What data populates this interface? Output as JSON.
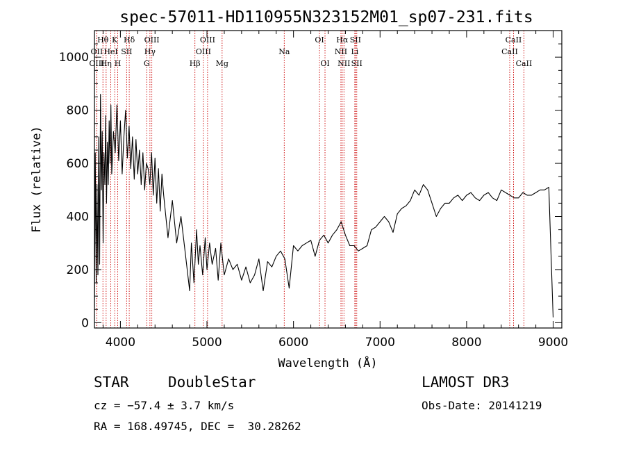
{
  "chart_data": {
    "type": "line",
    "title": "spec-57011-HD110955N323152M01_sp07-231.fits",
    "xlabel": "Wavelength (Å)",
    "ylabel": "Flux (relative)",
    "xlim": [
      3700,
      9100
    ],
    "ylim": [
      -20,
      1100
    ],
    "xticks": [
      4000,
      5000,
      6000,
      7000,
      8000,
      9000
    ],
    "yticks": [
      0,
      200,
      400,
      600,
      800,
      1000
    ],
    "line_color": "#000000",
    "marker_color": "#cc0000",
    "grid": false,
    "series": [
      {
        "x": [
          3700,
          3710,
          3720,
          3730,
          3740,
          3750,
          3760,
          3770,
          3780,
          3790,
          3800,
          3810,
          3820,
          3830,
          3840,
          3850,
          3860,
          3870,
          3880,
          3890,
          3900,
          3920,
          3940,
          3960,
          3980,
          4000,
          4020,
          4040,
          4060,
          4080,
          4100,
          4120,
          4140,
          4160,
          4180,
          4200,
          4220,
          4240,
          4260,
          4280,
          4300,
          4320,
          4340,
          4360,
          4380,
          4400,
          4420,
          4440,
          4460,
          4480,
          4500,
          4550,
          4600,
          4650,
          4700,
          4750,
          4800,
          4820,
          4850,
          4880,
          4900,
          4920,
          4950,
          4980,
          5000,
          5030,
          5060,
          5100,
          5130,
          5160,
          5200,
          5250,
          5300,
          5350,
          5400,
          5450,
          5500,
          5550,
          5600,
          5650,
          5700,
          5750,
          5800,
          5850,
          5900,
          5950,
          6000,
          6050,
          6100,
          6150,
          6200,
          6250,
          6300,
          6350,
          6400,
          6450,
          6500,
          6550,
          6600,
          6650,
          6700,
          6750,
          6800,
          6850,
          6900,
          6950,
          7000,
          7050,
          7100,
          7150,
          7200,
          7250,
          7300,
          7350,
          7400,
          7450,
          7500,
          7550,
          7600,
          7650,
          7700,
          7750,
          7800,
          7850,
          7900,
          7950,
          8000,
          8050,
          8100,
          8150,
          8200,
          8250,
          8300,
          8350,
          8400,
          8450,
          8500,
          8550,
          8600,
          8650,
          8700,
          8750,
          8800,
          8850,
          8900,
          8950,
          9000
        ],
        "values": [
          60,
          640,
          150,
          520,
          180,
          700,
          220,
          860,
          500,
          720,
          300,
          640,
          520,
          780,
          450,
          680,
          520,
          760,
          600,
          820,
          560,
          720,
          640,
          820,
          610,
          760,
          560,
          700,
          800,
          620,
          740,
          580,
          700,
          540,
          690,
          560,
          650,
          520,
          640,
          500,
          600,
          580,
          520,
          640,
          480,
          620,
          450,
          580,
          420,
          560,
          480,
          320,
          460,
          300,
          400,
          260,
          120,
          300,
          150,
          350,
          220,
          290,
          180,
          320,
          200,
          300,
          220,
          280,
          160,
          300,
          180,
          240,
          200,
          220,
          160,
          210,
          150,
          180,
          240,
          120,
          230,
          210,
          250,
          270,
          240,
          130,
          290,
          270,
          290,
          300,
          310,
          250,
          310,
          330,
          300,
          330,
          350,
          380,
          330,
          290,
          290,
          270,
          280,
          290,
          350,
          360,
          380,
          400,
          380,
          340,
          410,
          430,
          440,
          460,
          500,
          480,
          520,
          500,
          450,
          400,
          430,
          450,
          450,
          470,
          480,
          460,
          480,
          490,
          470,
          460,
          480,
          490,
          470,
          460,
          500,
          490,
          480,
          470,
          470,
          490,
          480,
          480,
          490,
          500,
          500,
          510,
          20
        ]
      }
    ],
    "lines": [
      {
        "label": "Hθ",
        "x": 3798,
        "row": 0
      },
      {
        "label": "OII",
        "x": 3727,
        "row": 1
      },
      {
        "label": "OIII",
        "x": 3727,
        "row": 2
      },
      {
        "label": "Hη",
        "x": 3835,
        "row": 2
      },
      {
        "label": "HeI",
        "x": 3889,
        "row": 1
      },
      {
        "label": "K",
        "x": 3934,
        "row": 0
      },
      {
        "label": "H",
        "x": 3969,
        "row": 2
      },
      {
        "label": "SII",
        "x": 4072,
        "row": 1
      },
      {
        "label": "Hδ",
        "x": 4102,
        "row": 0
      },
      {
        "label": "OIII",
        "x": 4363,
        "row": 0
      },
      {
        "label": "Hγ",
        "x": 4341,
        "row": 1
      },
      {
        "label": "G",
        "x": 4304,
        "row": 2
      },
      {
        "label": "Hβ",
        "x": 4861,
        "row": 2
      },
      {
        "label": "OIII",
        "x": 4959,
        "row": 1
      },
      {
        "label": "OIII",
        "x": 5007,
        "row": 0
      },
      {
        "label": "Mg",
        "x": 5175,
        "row": 2
      },
      {
        "label": "Na",
        "x": 5893,
        "row": 1
      },
      {
        "label": "OI",
        "x": 6300,
        "row": 0
      },
      {
        "label": "OI",
        "x": 6364,
        "row": 2
      },
      {
        "label": "Hα",
        "x": 6563,
        "row": 0
      },
      {
        "label": "NII",
        "x": 6548,
        "row": 1
      },
      {
        "label": "NII",
        "x": 6583,
        "row": 2
      },
      {
        "label": "Li",
        "x": 6708,
        "row": 1
      },
      {
        "label": "SII",
        "x": 6716,
        "row": 0
      },
      {
        "label": "SII",
        "x": 6731,
        "row": 2
      },
      {
        "label": "CaII",
        "x": 8498,
        "row": 1
      },
      {
        "label": "CaII",
        "x": 8542,
        "row": 0
      },
      {
        "label": "CaII",
        "x": 8662,
        "row": 2
      }
    ]
  },
  "info": {
    "class": "STAR",
    "subclass": "DoubleStar",
    "survey": "LAMOST DR3",
    "cz": "cz = −57.4 ± 3.7 km/s",
    "obs_date": "Obs-Date: 20141219",
    "coords": "RA = 168.49745, DEC =  30.28262"
  }
}
